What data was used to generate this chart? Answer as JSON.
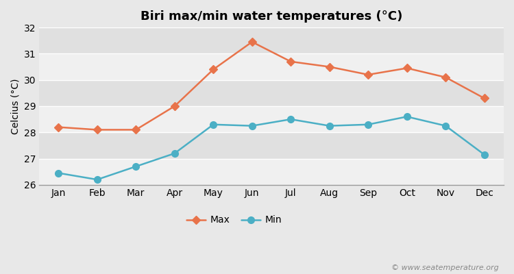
{
  "title": "Biri max/min water temperatures (°C)",
  "ylabel": "Celcius (°C)",
  "months": [
    "Jan",
    "Feb",
    "Mar",
    "Apr",
    "May",
    "Jun",
    "Jul",
    "Aug",
    "Sep",
    "Oct",
    "Nov",
    "Dec"
  ],
  "max_temps": [
    28.2,
    28.1,
    28.1,
    29.0,
    30.4,
    31.45,
    30.7,
    30.5,
    30.2,
    30.45,
    30.1,
    29.3
  ],
  "min_temps": [
    26.45,
    26.2,
    26.7,
    27.2,
    28.3,
    28.25,
    28.5,
    28.25,
    28.3,
    28.6,
    28.25,
    27.15
  ],
  "max_color": "#e8734a",
  "min_color": "#4bafc5",
  "bg_color": "#e8e8e8",
  "band_colors": [
    "#f0f0f0",
    "#e0e0e0"
  ],
  "ylim": [
    26,
    32
  ],
  "yticks": [
    26,
    27,
    28,
    29,
    30,
    31,
    32
  ],
  "legend_labels": [
    "Max",
    "Min"
  ],
  "watermark": "© www.seatemperature.org",
  "title_fontsize": 13,
  "label_fontsize": 10,
  "tick_fontsize": 10
}
